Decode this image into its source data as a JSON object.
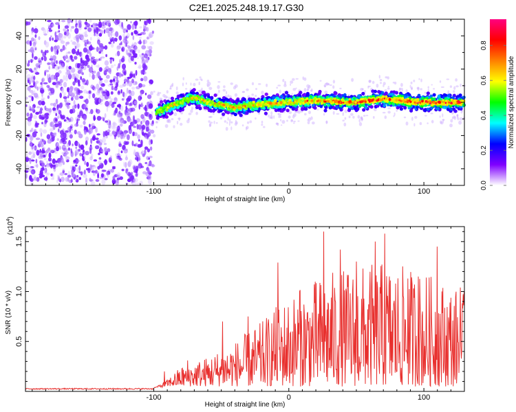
{
  "chart_title": "C2E1.2025.248.19.17.G30",
  "chart_data": [
    {
      "type": "heatmap",
      "name": "spectrogram",
      "xlabel": "Height of straight line (km)",
      "ylabel": "Frequency (Hz)",
      "xlim": [
        -195,
        130
      ],
      "ylim": [
        -50,
        50
      ],
      "xticks": [
        "-100",
        "0",
        "100"
      ],
      "yticks": [
        "-40",
        "-20",
        "0",
        "20",
        "40"
      ],
      "ytick_values": [
        -40,
        -20,
        0,
        20,
        40
      ],
      "xtick_values": [
        -100,
        0,
        100
      ],
      "noise_region_x": [
        -195,
        -100
      ],
      "signal_region_x": [
        -100,
        130
      ],
      "signal_center_hz": [
        {
          "x": -100,
          "y": -7
        },
        {
          "x": -90,
          "y": -3
        },
        {
          "x": -80,
          "y": 0
        },
        {
          "x": -70,
          "y": 3
        },
        {
          "x": -60,
          "y": 0
        },
        {
          "x": -40,
          "y": -3
        },
        {
          "x": -20,
          "y": -1
        },
        {
          "x": 0,
          "y": 0
        },
        {
          "x": 20,
          "y": 1
        },
        {
          "x": 50,
          "y": 0
        },
        {
          "x": 70,
          "y": 2
        },
        {
          "x": 100,
          "y": 0
        },
        {
          "x": 130,
          "y": 0
        }
      ],
      "colorbar": {
        "label": "Normalized spectral amplitude",
        "ticks": [
          "0.0",
          "0.2",
          "0.4",
          "0.6",
          "0.8"
        ],
        "tick_values": [
          0.0,
          0.2,
          0.4,
          0.6,
          0.8
        ],
        "range": [
          0,
          0.95
        ],
        "colors": [
          "#ffffff",
          "#7f00ff",
          "#0000ff",
          "#00ffff",
          "#00ff00",
          "#ffff00",
          "#ff8000",
          "#ff0000",
          "#ff0080"
        ]
      }
    },
    {
      "type": "line",
      "name": "snr",
      "xlabel": "Height of straight line (km)",
      "ylabel": "SNR (10 * v/v)",
      "y_multiplier": "(x10",
      "y_multiplier_exp": "4",
      "y_multiplier_close": ")",
      "xlim": [
        -195,
        130
      ],
      "ylim": [
        0,
        1.65
      ],
      "xticks": [
        "-100",
        "0",
        "100"
      ],
      "xtick_values": [
        -100,
        0,
        100
      ],
      "yticks": [
        "0.5",
        "1.0",
        "1.5"
      ],
      "ytick_values": [
        0.5,
        1.0,
        1.5
      ],
      "line_color": "#e8302e",
      "series": [
        {
          "name": "SNR",
          "envelope": [
            {
              "x": -195,
              "y": 0.02
            },
            {
              "x": -100,
              "y": 0.03
            },
            {
              "x": -90,
              "y": 0.12
            },
            {
              "x": -80,
              "y": 0.25
            },
            {
              "x": -60,
              "y": 0.35
            },
            {
              "x": -40,
              "y": 0.5
            },
            {
              "x": -20,
              "y": 0.7
            },
            {
              "x": -10,
              "y": 0.85
            },
            {
              "x": 10,
              "y": 1.05
            },
            {
              "x": 30,
              "y": 1.2
            },
            {
              "x": 70,
              "y": 1.3
            },
            {
              "x": 100,
              "y": 1.2
            },
            {
              "x": 130,
              "y": 1.0
            }
          ]
        },
        {
          "name": "peaks",
          "points": [
            {
              "x": -92,
              "y": 0.2
            },
            {
              "x": -75,
              "y": 0.31
            },
            {
              "x": -49,
              "y": 0.7
            },
            {
              "x": -30,
              "y": 0.75
            },
            {
              "x": -8,
              "y": 1.29
            },
            {
              "x": 8,
              "y": 1.0
            },
            {
              "x": 26,
              "y": 1.6
            },
            {
              "x": 38,
              "y": 1.42
            },
            {
              "x": 50,
              "y": 1.3
            },
            {
              "x": 64,
              "y": 1.5
            },
            {
              "x": 71,
              "y": 1.58
            },
            {
              "x": 88,
              "y": 1.13
            },
            {
              "x": 96,
              "y": 1.15
            },
            {
              "x": 110,
              "y": 1.45
            },
            {
              "x": 127,
              "y": 1.04
            }
          ]
        }
      ]
    }
  ]
}
